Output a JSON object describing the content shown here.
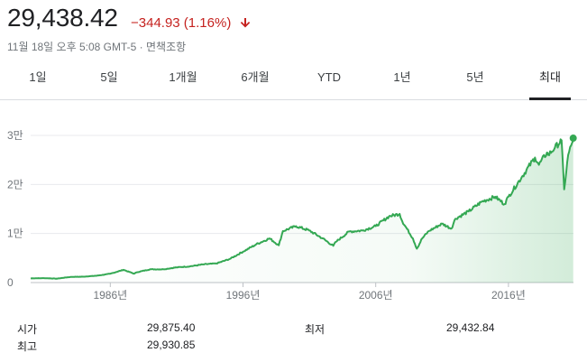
{
  "header": {
    "price": "29,438.42",
    "change": "−344.93 (1.16%)",
    "change_direction": "down",
    "change_color": "#c5221f",
    "meta": "11월 18일 오후 5:08 GMT-5 · 면책조항"
  },
  "tabs": [
    {
      "label": "1일",
      "active": false
    },
    {
      "label": "5일",
      "active": false
    },
    {
      "label": "1개월",
      "active": false
    },
    {
      "label": "6개월",
      "active": false
    },
    {
      "label": "YTD",
      "active": false
    },
    {
      "label": "1년",
      "active": false
    },
    {
      "label": "5년",
      "active": false
    },
    {
      "label": "최대",
      "active": true
    }
  ],
  "chart_data": {
    "type": "area",
    "line_color": "#34a853",
    "grid": true,
    "x_range": [
      1980,
      2020
    ],
    "ylim": [
      0,
      30000
    ],
    "y_ticks": [
      {
        "value": 0,
        "label": "0"
      },
      {
        "value": 10000,
        "label": "1만"
      },
      {
        "value": 20000,
        "label": "2만"
      },
      {
        "value": 30000,
        "label": "3만"
      }
    ],
    "x_ticks": [
      {
        "value": 1986,
        "label": "1986년"
      },
      {
        "value": 1996,
        "label": "1996년"
      },
      {
        "value": 2006,
        "label": "2006년"
      },
      {
        "value": 2016,
        "label": "2016년"
      }
    ],
    "points": [
      [
        1980.0,
        850
      ],
      [
        1981.0,
        900
      ],
      [
        1982.0,
        800
      ],
      [
        1983.0,
        1150
      ],
      [
        1984.0,
        1200
      ],
      [
        1985.0,
        1400
      ],
      [
        1986.0,
        1800
      ],
      [
        1987.0,
        2600
      ],
      [
        1987.8,
        1800
      ],
      [
        1988.0,
        2100
      ],
      [
        1989.0,
        2700
      ],
      [
        1990.0,
        2700
      ],
      [
        1991.0,
        3100
      ],
      [
        1992.0,
        3300
      ],
      [
        1993.0,
        3700
      ],
      [
        1994.0,
        3900
      ],
      [
        1995.0,
        4800
      ],
      [
        1996.0,
        6300
      ],
      [
        1997.0,
        7800
      ],
      [
        1998.0,
        9000
      ],
      [
        1998.7,
        7600
      ],
      [
        1999.0,
        10500
      ],
      [
        2000.0,
        11500
      ],
      [
        2001.0,
        10600
      ],
      [
        2002.0,
        9000
      ],
      [
        2002.8,
        7500
      ],
      [
        2003.0,
        8300
      ],
      [
        2004.0,
        10400
      ],
      [
        2005.0,
        10600
      ],
      [
        2006.0,
        11500
      ],
      [
        2007.0,
        13500
      ],
      [
        2007.8,
        14000
      ],
      [
        2008.0,
        12500
      ],
      [
        2008.8,
        9000
      ],
      [
        2009.1,
        6900
      ],
      [
        2009.5,
        9000
      ],
      [
        2010.0,
        10500
      ],
      [
        2011.0,
        12000
      ],
      [
        2011.7,
        11000
      ],
      [
        2012.0,
        13000
      ],
      [
        2013.0,
        14500
      ],
      [
        2014.0,
        16500
      ],
      [
        2015.0,
        17500
      ],
      [
        2015.7,
        16000
      ],
      [
        2016.0,
        17500
      ],
      [
        2017.0,
        21500
      ],
      [
        2018.0,
        25500
      ],
      [
        2018.3,
        24000
      ],
      [
        2018.9,
        26500
      ],
      [
        2019.0,
        26000
      ],
      [
        2019.5,
        27500
      ],
      [
        2020.0,
        29000
      ],
      [
        2020.2,
        19000
      ],
      [
        2020.5,
        26000
      ],
      [
        2020.8,
        28500
      ],
      [
        2020.88,
        29438
      ]
    ]
  },
  "stats": [
    {
      "label": "시가",
      "value": "29,875.40"
    },
    {
      "label": "최고",
      "value": "29,930.85"
    },
    {
      "label": "최저",
      "value": "29,432.84"
    }
  ]
}
